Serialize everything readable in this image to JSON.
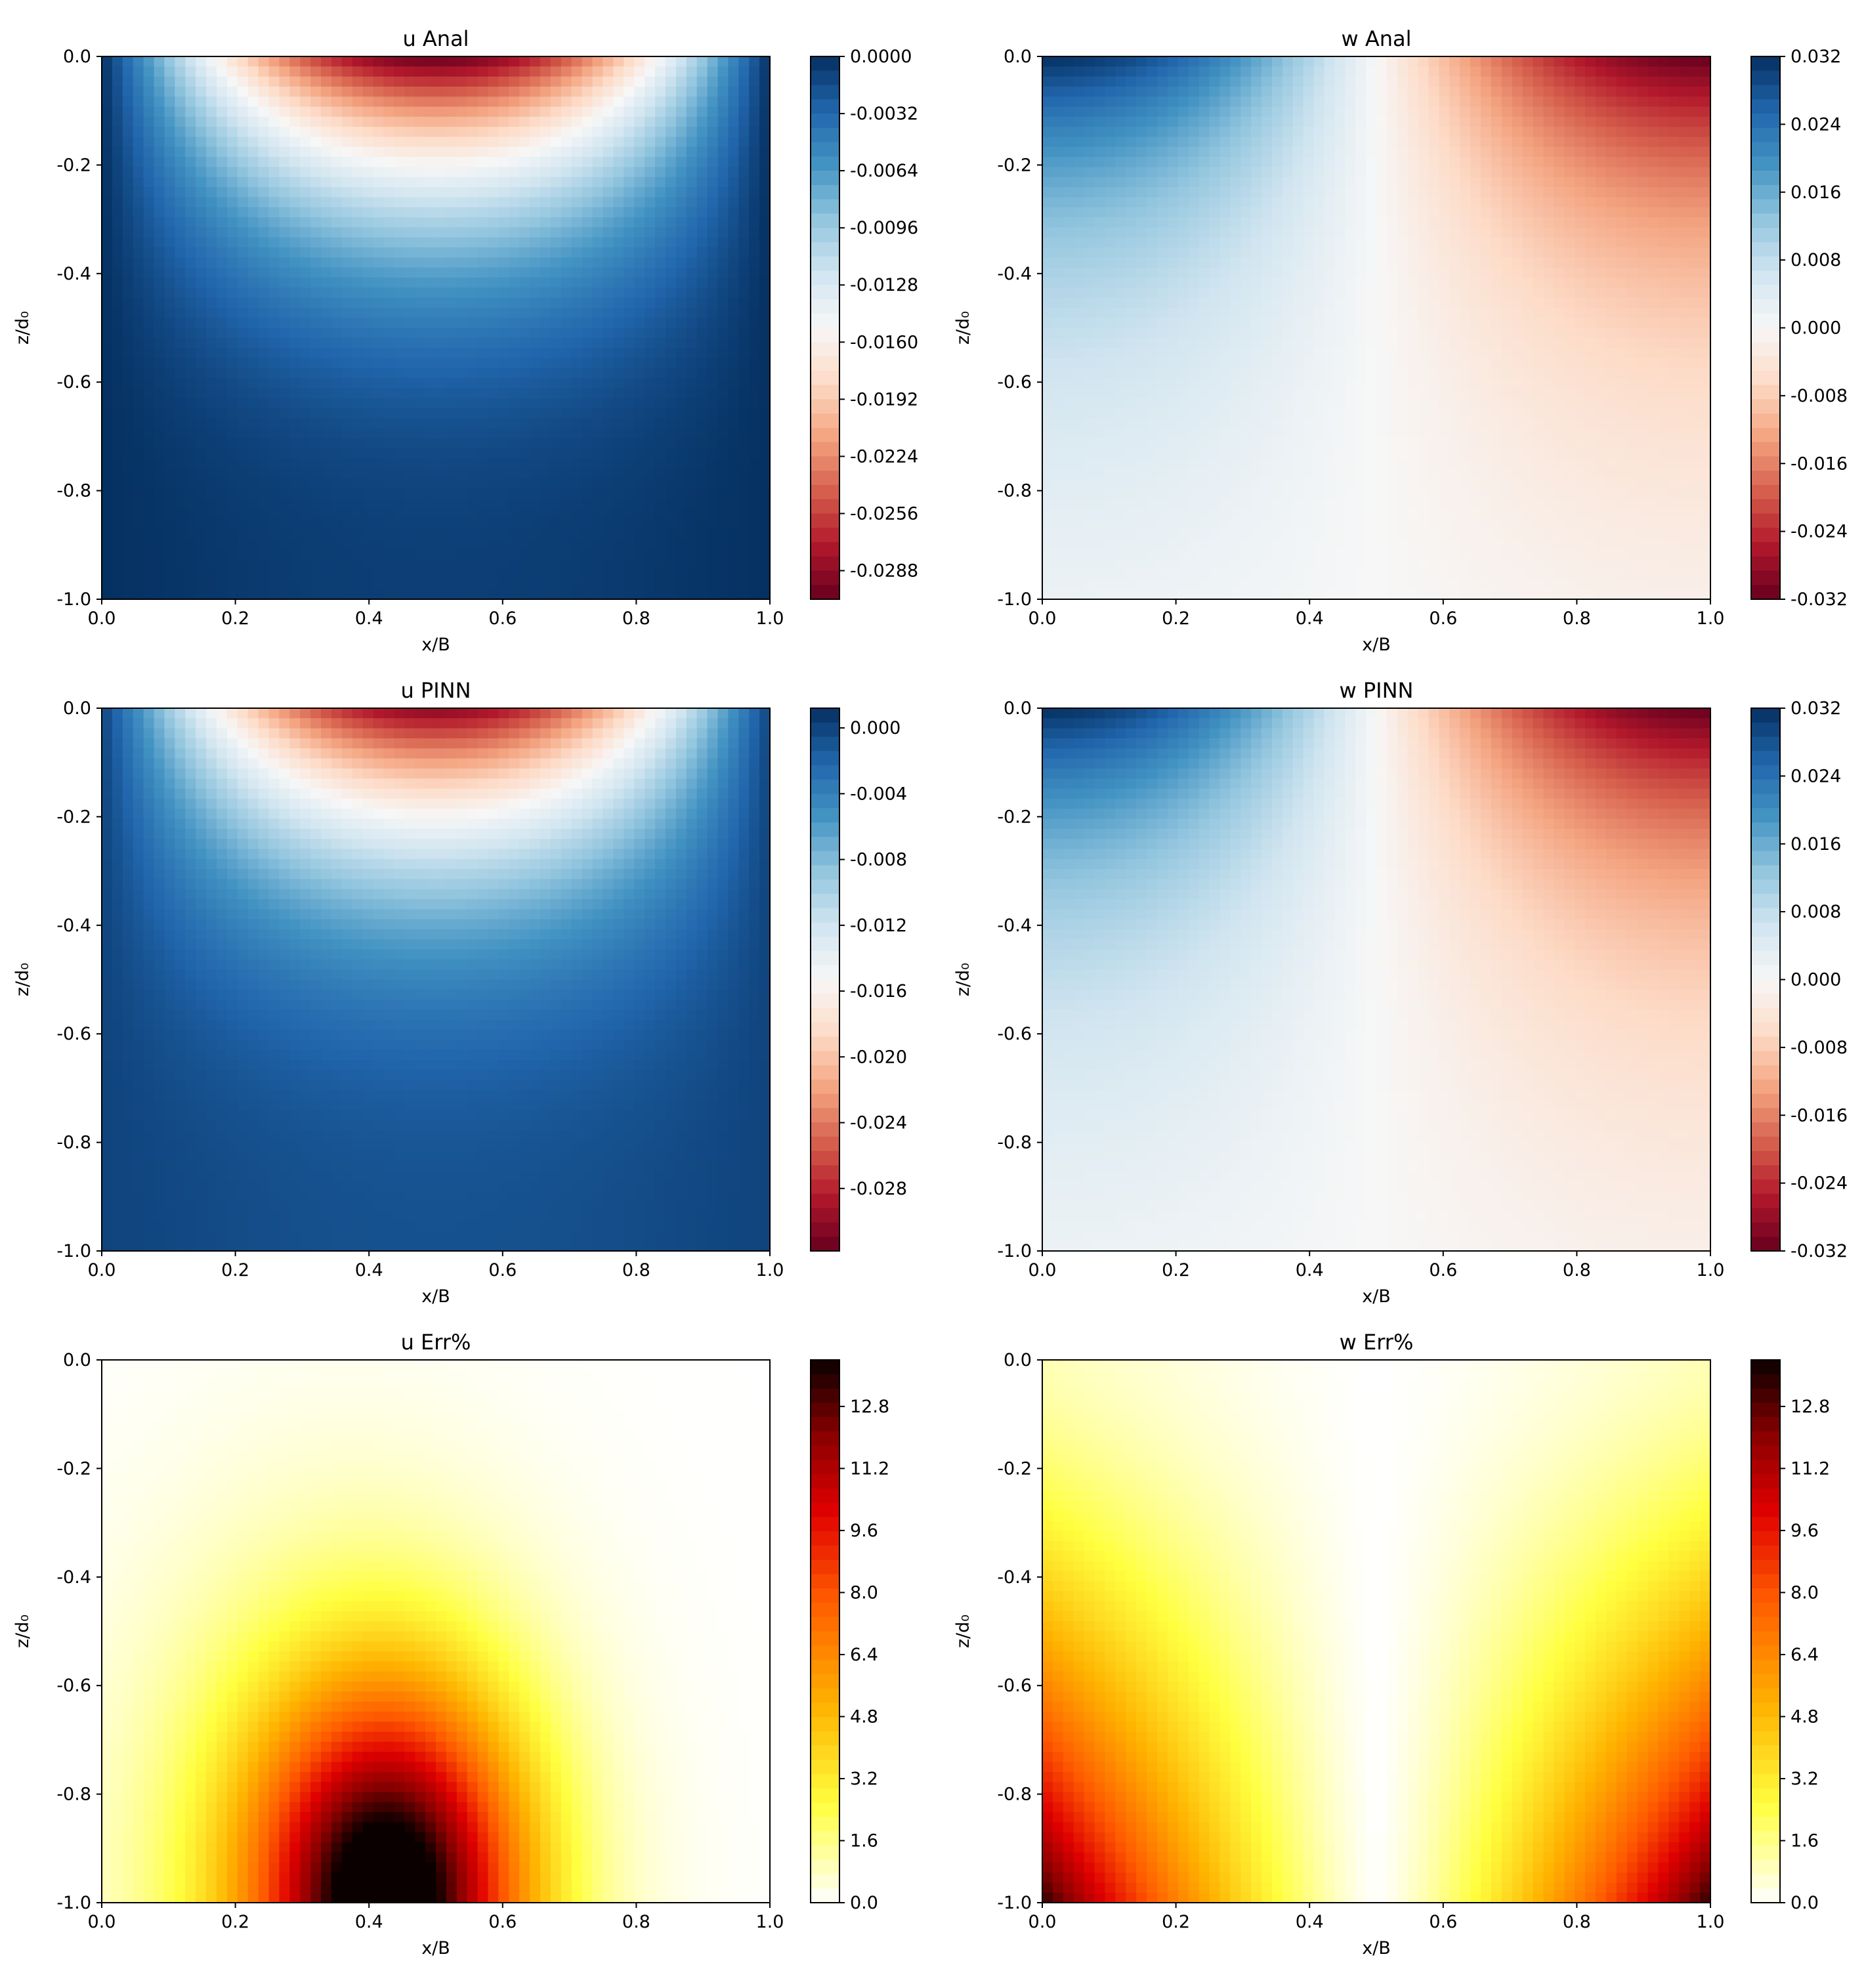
{
  "chart_data": [
    {
      "type": "heatmap",
      "title": "u Anal",
      "xlabel": "x/B",
      "ylabel": "z/d₀",
      "xlim": [
        0.0,
        1.0
      ],
      "ylim": [
        -1.0,
        0.0
      ],
      "x_ticks": [
        "0.0",
        "0.2",
        "0.4",
        "0.6",
        "0.8",
        "1.0"
      ],
      "y_ticks": [
        "0.0",
        "-0.2",
        "-0.4",
        "-0.6",
        "-0.8",
        "-1.0"
      ],
      "colormap": "RdBu",
      "colorbar_range": [
        -0.0304,
        0.0
      ],
      "colorbar_ticks": [
        "0.0000",
        "-0.0032",
        "-0.0064",
        "-0.0096",
        "-0.0128",
        "-0.0160",
        "-0.0192",
        "-0.0224",
        "-0.0256",
        "-0.0288"
      ],
      "field": "u"
    },
    {
      "type": "heatmap",
      "title": "w Anal",
      "xlabel": "x/B",
      "ylabel": "z/d₀",
      "xlim": [
        0.0,
        1.0
      ],
      "ylim": [
        -1.0,
        0.0
      ],
      "x_ticks": [
        "0.0",
        "0.2",
        "0.4",
        "0.6",
        "0.8",
        "1.0"
      ],
      "y_ticks": [
        "0.0",
        "-0.2",
        "-0.4",
        "-0.6",
        "-0.8",
        "-1.0"
      ],
      "colormap": "RdBu",
      "colorbar_range": [
        -0.032,
        0.032
      ],
      "colorbar_ticks": [
        "0.032",
        "0.024",
        "0.016",
        "0.008",
        "0.000",
        "-0.008",
        "-0.016",
        "-0.024",
        "-0.032"
      ],
      "field": "w"
    },
    {
      "type": "heatmap",
      "title": "u PINN",
      "xlabel": "x/B",
      "ylabel": "z/d₀",
      "xlim": [
        0.0,
        1.0
      ],
      "ylim": [
        -1.0,
        0.0
      ],
      "x_ticks": [
        "0.0",
        "0.2",
        "0.4",
        "0.6",
        "0.8",
        "1.0"
      ],
      "y_ticks": [
        "0.0",
        "-0.2",
        "-0.4",
        "-0.6",
        "-0.8",
        "-1.0"
      ],
      "colormap": "RdBu",
      "colorbar_range": [
        -0.0318,
        0.0012
      ],
      "colorbar_ticks": [
        "0.000",
        "-0.004",
        "-0.008",
        "-0.012",
        "-0.016",
        "-0.020",
        "-0.024",
        "-0.028"
      ],
      "field": "u"
    },
    {
      "type": "heatmap",
      "title": "w PINN",
      "xlabel": "x/B",
      "ylabel": "z/d₀",
      "xlim": [
        0.0,
        1.0
      ],
      "ylim": [
        -1.0,
        0.0
      ],
      "x_ticks": [
        "0.0",
        "0.2",
        "0.4",
        "0.6",
        "0.8",
        "1.0"
      ],
      "y_ticks": [
        "0.0",
        "-0.2",
        "-0.4",
        "-0.6",
        "-0.8",
        "-1.0"
      ],
      "colormap": "RdBu",
      "colorbar_range": [
        -0.032,
        0.032
      ],
      "colorbar_ticks": [
        "0.032",
        "0.024",
        "0.016",
        "0.008",
        "0.000",
        "-0.008",
        "-0.016",
        "-0.024",
        "-0.032"
      ],
      "field": "w"
    },
    {
      "type": "heatmap",
      "title": "u Err%",
      "xlabel": "x/B",
      "ylabel": "z/d₀",
      "xlim": [
        0.0,
        1.0
      ],
      "ylim": [
        -1.0,
        0.0
      ],
      "x_ticks": [
        "0.0",
        "0.2",
        "0.4",
        "0.6",
        "0.8",
        "1.0"
      ],
      "y_ticks": [
        "0.0",
        "-0.2",
        "-0.4",
        "-0.6",
        "-0.8",
        "-1.0"
      ],
      "colormap": "hot_r",
      "colorbar_range": [
        0.0,
        14.0
      ],
      "colorbar_ticks": [
        "12.8",
        "11.2",
        "9.6",
        "8.0",
        "6.4",
        "4.8",
        "3.2",
        "1.6",
        "0.0"
      ],
      "field": "uerr"
    },
    {
      "type": "heatmap",
      "title": "w Err%",
      "xlabel": "x/B",
      "ylabel": "z/d₀",
      "xlim": [
        0.0,
        1.0
      ],
      "ylim": [
        -1.0,
        0.0
      ],
      "x_ticks": [
        "0.0",
        "0.2",
        "0.4",
        "0.6",
        "0.8",
        "1.0"
      ],
      "y_ticks": [
        "0.0",
        "-0.2",
        "-0.4",
        "-0.6",
        "-0.8",
        "-1.0"
      ],
      "colormap": "hot_r",
      "colorbar_range": [
        0.0,
        14.0
      ],
      "colorbar_ticks": [
        "12.8",
        "11.2",
        "9.6",
        "8.0",
        "6.4",
        "4.8",
        "3.2",
        "1.6",
        "0.0"
      ],
      "field": "werr"
    }
  ]
}
